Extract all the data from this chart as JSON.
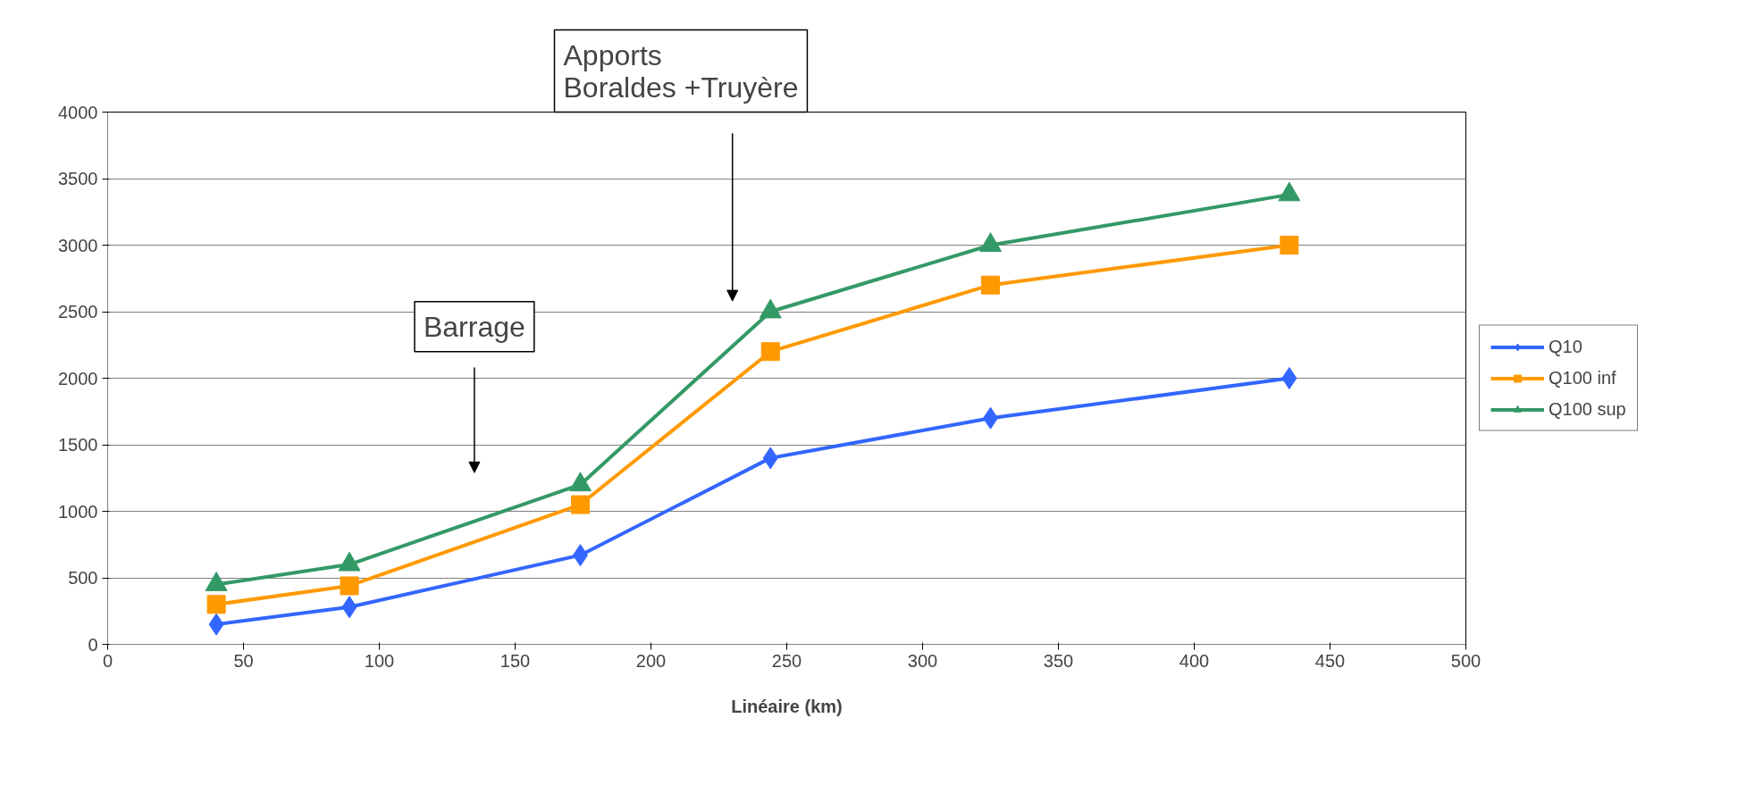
{
  "chart_data": {
    "type": "line",
    "xlabel": "Linéaire (km)",
    "xlim": [
      0,
      500
    ],
    "xticks": [
      0,
      50,
      100,
      150,
      200,
      250,
      300,
      350,
      400,
      450,
      500
    ],
    "ylim": [
      0,
      4000
    ],
    "yticks": [
      0,
      500,
      1000,
      1500,
      2000,
      2500,
      3000,
      3500,
      4000
    ],
    "grid": "y",
    "legend": "right",
    "x": [
      40,
      89,
      174,
      244,
      325,
      435
    ],
    "series": [
      {
        "name": "Q10",
        "color": "#3366ff",
        "marker": "diamond",
        "values": [
          150,
          280,
          670,
          1400,
          1700,
          2000
        ]
      },
      {
        "name": "Q100 inf",
        "color": "#ff9900",
        "marker": "square",
        "values": [
          300,
          440,
          1050,
          2200,
          2700,
          3000
        ]
      },
      {
        "name": "Q100 sup",
        "color": "#339966",
        "marker": "triangle",
        "values": [
          450,
          600,
          1200,
          2500,
          3000,
          3380
        ]
      }
    ],
    "annotations": [
      "Barrage",
      "Apports\nBoraldes +Truyère"
    ]
  }
}
